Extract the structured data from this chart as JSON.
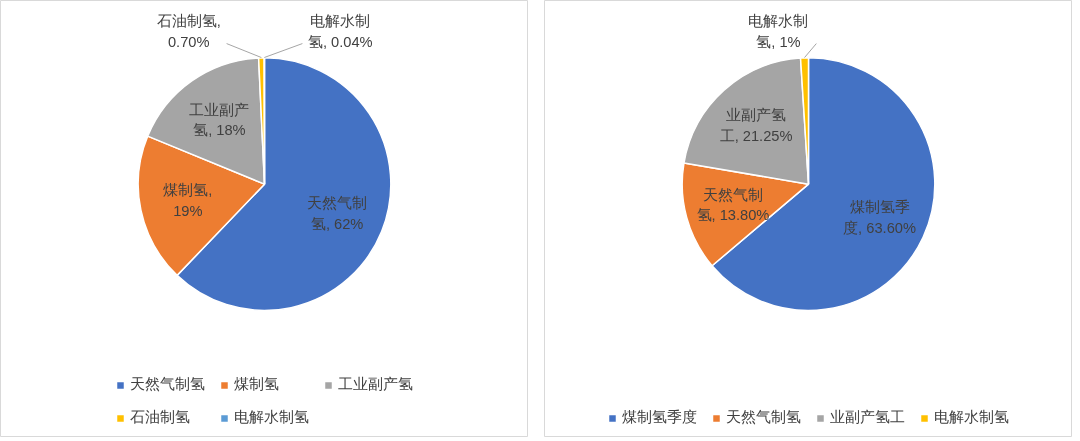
{
  "chart_data": [
    {
      "type": "pie",
      "categories": [
        "天然气制氢",
        "煤制氢",
        "工业副产氢",
        "石油制氢",
        "电解水制氢"
      ],
      "values": [
        62,
        19,
        18,
        0.7,
        0.04
      ],
      "value_labels": [
        "天然气制氢, 62%",
        "煤制氢, 19%",
        "工业副产氢, 18%",
        "石油制氢, 0.70%",
        "电解水制氢, 0.04%"
      ],
      "colors": [
        "#4472c4",
        "#ed7d31",
        "#a5a5a5",
        "#ffc000",
        "#5b9bd5"
      ],
      "legend": "bottom"
    },
    {
      "type": "pie",
      "categories": [
        "煤制氢季度",
        "天然气制氢",
        "业副产氢工",
        "电解水制氢"
      ],
      "values": [
        63.6,
        13.8,
        21.25,
        1
      ],
      "value_labels": [
        "煤制氢季度, 63.60%",
        "天然气制氢, 13.80%",
        "业副产氢工, 21.25%",
        "电解水制氢, 1%"
      ],
      "colors": [
        "#4472c4",
        "#ed7d31",
        "#a5a5a5",
        "#ffc000"
      ],
      "legend": "bottom"
    }
  ]
}
